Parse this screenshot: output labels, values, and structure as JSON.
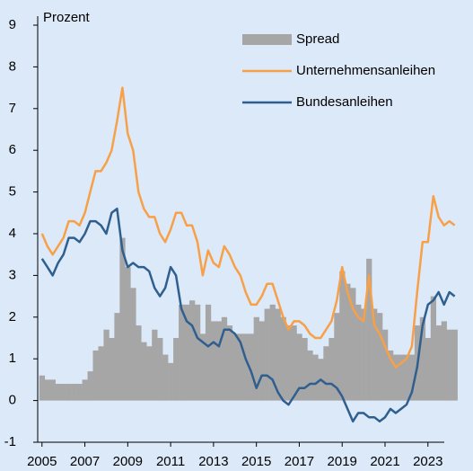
{
  "chart_data": {
    "type": "line",
    "y_axis_label": "Prozent",
    "x": [
      2005,
      2005.25,
      2005.5,
      2005.75,
      2006,
      2006.25,
      2006.5,
      2006.75,
      2007,
      2007.25,
      2007.5,
      2007.75,
      2008,
      2008.25,
      2008.5,
      2008.75,
      2009,
      2009.25,
      2009.5,
      2009.75,
      2010,
      2010.25,
      2010.5,
      2010.75,
      2011,
      2011.25,
      2011.5,
      2011.75,
      2012,
      2012.25,
      2012.5,
      2012.75,
      2013,
      2013.25,
      2013.5,
      2013.75,
      2014,
      2014.25,
      2014.5,
      2014.75,
      2015,
      2015.25,
      2015.5,
      2015.75,
      2016,
      2016.25,
      2016.5,
      2016.75,
      2017,
      2017.25,
      2017.5,
      2017.75,
      2018,
      2018.25,
      2018.5,
      2018.75,
      2019,
      2019.25,
      2019.5,
      2019.75,
      2020,
      2020.25,
      2020.5,
      2020.75,
      2021,
      2021.25,
      2021.5,
      2021.75,
      2022,
      2022.25,
      2022.5,
      2022.75,
      2023,
      2023.25,
      2023.5,
      2023.75,
      2024,
      2024.25
    ],
    "series": [
      {
        "name": "Spread",
        "kind": "bar",
        "color": "#a6a6a6",
        "values": [
          0.6,
          0.5,
          0.5,
          0.4,
          0.4,
          0.4,
          0.4,
          0.4,
          0.5,
          0.7,
          1.2,
          1.3,
          1.7,
          1.5,
          2.1,
          3.9,
          3.2,
          2.7,
          1.8,
          1.4,
          1.3,
          1.7,
          1.5,
          1.1,
          0.9,
          1.5,
          2.3,
          2.3,
          2.4,
          2.3,
          1.6,
          2.3,
          1.9,
          1.9,
          2.0,
          1.8,
          1.6,
          1.6,
          1.6,
          1.6,
          2.0,
          1.9,
          2.2,
          2.3,
          2.2,
          2.0,
          1.8,
          1.8,
          1.6,
          1.5,
          1.2,
          1.1,
          1.0,
          1.3,
          1.5,
          2.1,
          3.1,
          2.8,
          2.7,
          2.3,
          2.2,
          3.4,
          2.2,
          2.1,
          1.7,
          1.2,
          1.1,
          1.1,
          1.1,
          1.1,
          1.8,
          2.0,
          1.5,
          2.5,
          1.8,
          1.9,
          1.7,
          1.7
        ]
      },
      {
        "name": "Unternehmensanleihen",
        "kind": "line",
        "color": "#f7a048",
        "values": [
          4.0,
          3.7,
          3.5,
          3.7,
          3.9,
          4.3,
          4.3,
          4.2,
          4.5,
          5.0,
          5.5,
          5.5,
          5.7,
          6.0,
          6.7,
          7.5,
          6.4,
          6.0,
          5.0,
          4.6,
          4.4,
          4.4,
          4.0,
          3.8,
          4.1,
          4.5,
          4.5,
          4.2,
          4.2,
          3.8,
          3.0,
          3.6,
          3.3,
          3.2,
          3.7,
          3.5,
          3.2,
          3.0,
          2.6,
          2.3,
          2.3,
          2.5,
          2.8,
          2.8,
          2.4,
          2.0,
          1.7,
          1.9,
          1.9,
          1.8,
          1.6,
          1.5,
          1.5,
          1.7,
          1.9,
          2.4,
          3.2,
          2.6,
          2.2,
          2.0,
          1.9,
          3.0,
          1.8,
          1.6,
          1.3,
          1.0,
          0.8,
          0.9,
          1.0,
          1.3,
          2.6,
          3.8,
          3.8,
          4.9,
          4.4,
          4.2,
          4.3,
          4.2
        ]
      },
      {
        "name": "Bundesanleihen",
        "kind": "line",
        "color": "#2f5f8f",
        "values": [
          3.4,
          3.2,
          3.0,
          3.3,
          3.5,
          3.9,
          3.9,
          3.8,
          4.0,
          4.3,
          4.3,
          4.2,
          4.0,
          4.5,
          4.6,
          3.6,
          3.2,
          3.3,
          3.2,
          3.2,
          3.1,
          2.7,
          2.5,
          2.7,
          3.2,
          3.0,
          2.2,
          1.9,
          1.8,
          1.5,
          1.4,
          1.3,
          1.4,
          1.3,
          1.7,
          1.7,
          1.6,
          1.4,
          1.0,
          0.7,
          0.3,
          0.6,
          0.6,
          0.5,
          0.2,
          0.0,
          -0.1,
          0.1,
          0.3,
          0.3,
          0.4,
          0.4,
          0.5,
          0.4,
          0.4,
          0.3,
          0.1,
          -0.2,
          -0.5,
          -0.3,
          -0.3,
          -0.4,
          -0.4,
          -0.5,
          -0.4,
          -0.2,
          -0.3,
          -0.2,
          -0.1,
          0.2,
          0.8,
          1.8,
          2.3,
          2.4,
          2.6,
          2.3,
          2.6,
          2.5
        ]
      }
    ],
    "xlim": [
      2004.8,
      2024.6
    ],
    "xticks": [
      2005,
      2007,
      2009,
      2011,
      2013,
      2015,
      2017,
      2019,
      2021,
      2023
    ],
    "ylim": [
      -1,
      9
    ],
    "yticks": [
      -1,
      0,
      1,
      2,
      3,
      4,
      5,
      6,
      7,
      8,
      9
    ],
    "legend": "top-right"
  }
}
